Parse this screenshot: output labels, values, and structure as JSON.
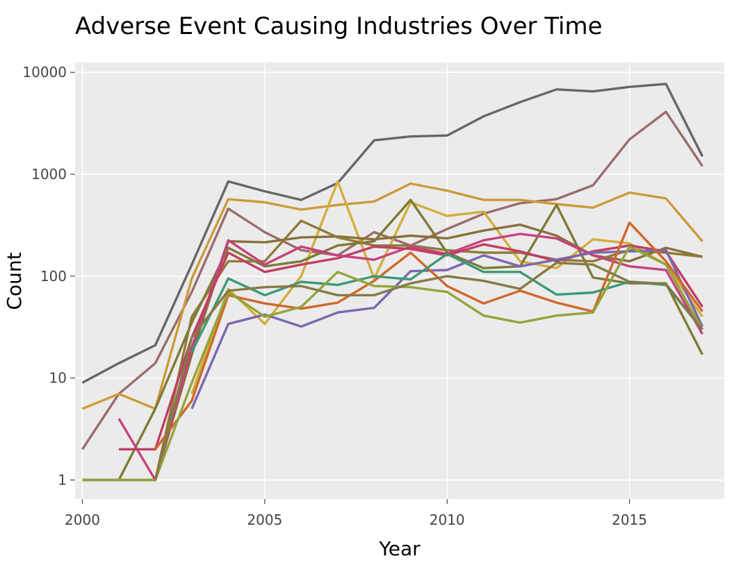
{
  "chart_data": {
    "type": "line",
    "title": "Adverse Event Causing Industries Over Time",
    "xlabel": "Year",
    "ylabel": "Count",
    "y_scale": "log",
    "xlim": [
      1999.8,
      2017.6
    ],
    "ylim": [
      0.65,
      12500
    ],
    "xticks": [
      2000,
      2005,
      2010,
      2015
    ],
    "xtick_labels": [
      "2000",
      "2005",
      "2010",
      "2015"
    ],
    "yticks": [
      1,
      10,
      100,
      1000,
      10000
    ],
    "ytick_labels": [
      "1",
      "10",
      "100",
      "1000",
      "10000"
    ],
    "grid": true,
    "legend": "none",
    "colors": {
      "background": "#ffffff",
      "panel": "#ebebeb",
      "grid": "#ffffff"
    },
    "series": [
      {
        "color": "#666666",
        "points": [
          [
            2000,
            9
          ],
          [
            2001,
            14
          ],
          [
            2002,
            21
          ],
          [
            2003,
            130
          ],
          [
            2004,
            850
          ],
          [
            2005,
            680
          ],
          [
            2006,
            560
          ],
          [
            2007,
            820
          ],
          [
            2008,
            2150
          ],
          [
            2009,
            2350
          ],
          [
            2010,
            2400
          ],
          [
            2011,
            3700
          ],
          [
            2012,
            5100
          ],
          [
            2013,
            6800
          ],
          [
            2014,
            6500
          ],
          [
            2015,
            7200
          ],
          [
            2016,
            7700
          ],
          [
            2017,
            1500
          ]
        ]
      },
      {
        "color": "#9c6b6b",
        "points": [
          [
            2000,
            2
          ],
          [
            2001,
            7
          ],
          [
            2002,
            14
          ],
          [
            2003,
            70
          ],
          [
            2004,
            460
          ],
          [
            2005,
            270
          ],
          [
            2006,
            180
          ],
          [
            2007,
            160
          ],
          [
            2008,
            270
          ],
          [
            2009,
            200
          ],
          [
            2010,
            290
          ],
          [
            2011,
            410
          ],
          [
            2012,
            520
          ],
          [
            2013,
            570
          ],
          [
            2014,
            780
          ],
          [
            2015,
            2200
          ],
          [
            2016,
            4100
          ],
          [
            2017,
            1200
          ]
        ]
      },
      {
        "color": "#cd9a37",
        "points": [
          [
            2000,
            5
          ],
          [
            2001,
            7
          ],
          [
            2002,
            5
          ],
          [
            2003,
            95
          ],
          [
            2004,
            570
          ],
          [
            2005,
            530
          ],
          [
            2006,
            450
          ],
          [
            2007,
            500
          ],
          [
            2008,
            540
          ],
          [
            2009,
            810
          ],
          [
            2010,
            690
          ],
          [
            2011,
            560
          ],
          [
            2012,
            560
          ],
          [
            2013,
            510
          ],
          [
            2014,
            470
          ],
          [
            2015,
            660
          ],
          [
            2016,
            580
          ],
          [
            2017,
            220
          ]
        ]
      },
      {
        "color": "#d1ae3c",
        "points": [
          [
            2003,
            7
          ],
          [
            2004,
            75
          ],
          [
            2005,
            34
          ],
          [
            2006,
            100
          ],
          [
            2007,
            850
          ],
          [
            2008,
            95
          ],
          [
            2009,
            530
          ],
          [
            2010,
            390
          ],
          [
            2011,
            430
          ],
          [
            2012,
            140
          ],
          [
            2013,
            120
          ],
          [
            2014,
            230
          ],
          [
            2015,
            210
          ],
          [
            2016,
            130
          ],
          [
            2017,
            40
          ]
        ]
      },
      {
        "color": "#8b6f3a",
        "points": [
          [
            2002,
            1
          ],
          [
            2003,
            17
          ],
          [
            2004,
            220
          ],
          [
            2005,
            215
          ],
          [
            2006,
            240
          ],
          [
            2007,
            245
          ],
          [
            2008,
            230
          ],
          [
            2009,
            250
          ],
          [
            2010,
            235
          ],
          [
            2011,
            280
          ],
          [
            2012,
            320
          ],
          [
            2013,
            250
          ],
          [
            2014,
            160
          ],
          [
            2015,
            140
          ],
          [
            2016,
            190
          ],
          [
            2017,
            155
          ]
        ]
      },
      {
        "color": "#7d7a35",
        "points": [
          [
            2000,
            1
          ],
          [
            2001,
            1
          ],
          [
            2002,
            5
          ],
          [
            2003,
            35
          ],
          [
            2004,
            190
          ],
          [
            2005,
            125
          ],
          [
            2006,
            140
          ],
          [
            2007,
            200
          ],
          [
            2008,
            220
          ],
          [
            2009,
            560
          ],
          [
            2010,
            170
          ],
          [
            2011,
            120
          ],
          [
            2012,
            125
          ],
          [
            2013,
            500
          ],
          [
            2014,
            97
          ],
          [
            2015,
            85
          ],
          [
            2016,
            85
          ],
          [
            2017,
            17
          ]
        ]
      },
      {
        "color": "#8f7a3a",
        "points": [
          [
            2000,
            1
          ],
          [
            2001,
            1
          ],
          [
            2002,
            1
          ],
          [
            2003,
            40
          ],
          [
            2004,
            140
          ],
          [
            2005,
            140
          ],
          [
            2006,
            350
          ],
          [
            2007,
            240
          ],
          [
            2008,
            200
          ],
          [
            2009,
            200
          ],
          [
            2010,
            180
          ],
          [
            2011,
            170
          ],
          [
            2012,
            170
          ],
          [
            2013,
            145
          ],
          [
            2014,
            140
          ],
          [
            2015,
            180
          ],
          [
            2016,
            170
          ],
          [
            2017,
            155
          ]
        ]
      },
      {
        "color": "#c7417f",
        "points": [
          [
            2001,
            4
          ],
          [
            2002,
            1
          ],
          [
            2003,
            20
          ],
          [
            2004,
            225
          ],
          [
            2005,
            130
          ],
          [
            2006,
            195
          ],
          [
            2007,
            160
          ],
          [
            2008,
            145
          ],
          [
            2009,
            195
          ],
          [
            2010,
            165
          ],
          [
            2011,
            225
          ],
          [
            2012,
            260
          ],
          [
            2013,
            235
          ],
          [
            2014,
            160
          ],
          [
            2015,
            125
          ],
          [
            2016,
            115
          ],
          [
            2017,
            27
          ]
        ]
      },
      {
        "color": "#c03e63",
        "points": [
          [
            2001,
            2
          ],
          [
            2002,
            2
          ],
          [
            2003,
            25
          ],
          [
            2004,
            170
          ],
          [
            2005,
            110
          ],
          [
            2006,
            130
          ],
          [
            2007,
            150
          ],
          [
            2008,
            195
          ],
          [
            2009,
            185
          ],
          [
            2010,
            160
          ],
          [
            2011,
            205
          ],
          [
            2012,
            175
          ],
          [
            2013,
            140
          ],
          [
            2014,
            175
          ],
          [
            2015,
            200
          ],
          [
            2016,
            175
          ],
          [
            2017,
            50
          ]
        ]
      },
      {
        "color": "#7b66b0",
        "points": [
          [
            2003,
            5
          ],
          [
            2004,
            34
          ],
          [
            2005,
            42
          ],
          [
            2006,
            32
          ],
          [
            2007,
            44
          ],
          [
            2008,
            49
          ],
          [
            2009,
            112
          ],
          [
            2010,
            115
          ],
          [
            2011,
            160
          ],
          [
            2012,
            125
          ],
          [
            2013,
            145
          ],
          [
            2014,
            170
          ],
          [
            2015,
            175
          ],
          [
            2016,
            180
          ],
          [
            2017,
            32
          ]
        ]
      },
      {
        "color": "#d0682b",
        "points": [
          [
            2002,
            2
          ],
          [
            2003,
            6
          ],
          [
            2004,
            65
          ],
          [
            2005,
            54
          ],
          [
            2006,
            48
          ],
          [
            2007,
            55
          ],
          [
            2008,
            90
          ],
          [
            2009,
            170
          ],
          [
            2010,
            80
          ],
          [
            2011,
            54
          ],
          [
            2012,
            72
          ],
          [
            2013,
            55
          ],
          [
            2014,
            45
          ],
          [
            2015,
            335
          ],
          [
            2016,
            140
          ],
          [
            2017,
            45
          ]
        ]
      },
      {
        "color": "#3c9a76",
        "points": [
          [
            2003,
            18
          ],
          [
            2004,
            95
          ],
          [
            2005,
            65
          ],
          [
            2006,
            88
          ],
          [
            2007,
            82
          ],
          [
            2008,
            100
          ],
          [
            2009,
            93
          ],
          [
            2010,
            165
          ],
          [
            2011,
            110
          ],
          [
            2012,
            110
          ],
          [
            2013,
            66
          ],
          [
            2014,
            69
          ],
          [
            2015,
            88
          ],
          [
            2016,
            82
          ],
          [
            2017,
            30
          ]
        ]
      },
      {
        "color": "#93a43b",
        "points": [
          [
            2000,
            1
          ],
          [
            2001,
            1
          ],
          [
            2002,
            1
          ],
          [
            2003,
            9
          ],
          [
            2004,
            70
          ],
          [
            2005,
            40
          ],
          [
            2006,
            50
          ],
          [
            2007,
            110
          ],
          [
            2008,
            80
          ],
          [
            2009,
            78
          ],
          [
            2010,
            70
          ],
          [
            2011,
            41
          ],
          [
            2012,
            35
          ],
          [
            2013,
            41
          ],
          [
            2014,
            44
          ],
          [
            2015,
            195
          ],
          [
            2016,
            130
          ],
          [
            2017,
            30
          ]
        ]
      },
      {
        "color": "#857a45",
        "points": [
          [
            2002,
            1
          ],
          [
            2003,
            25
          ],
          [
            2004,
            72
          ],
          [
            2005,
            78
          ],
          [
            2006,
            80
          ],
          [
            2007,
            65
          ],
          [
            2008,
            65
          ],
          [
            2009,
            85
          ],
          [
            2010,
            100
          ],
          [
            2011,
            90
          ],
          [
            2012,
            75
          ],
          [
            2013,
            135
          ],
          [
            2014,
            130
          ],
          [
            2015,
            88
          ],
          [
            2016,
            84
          ],
          [
            2017,
            30
          ]
        ]
      }
    ]
  }
}
